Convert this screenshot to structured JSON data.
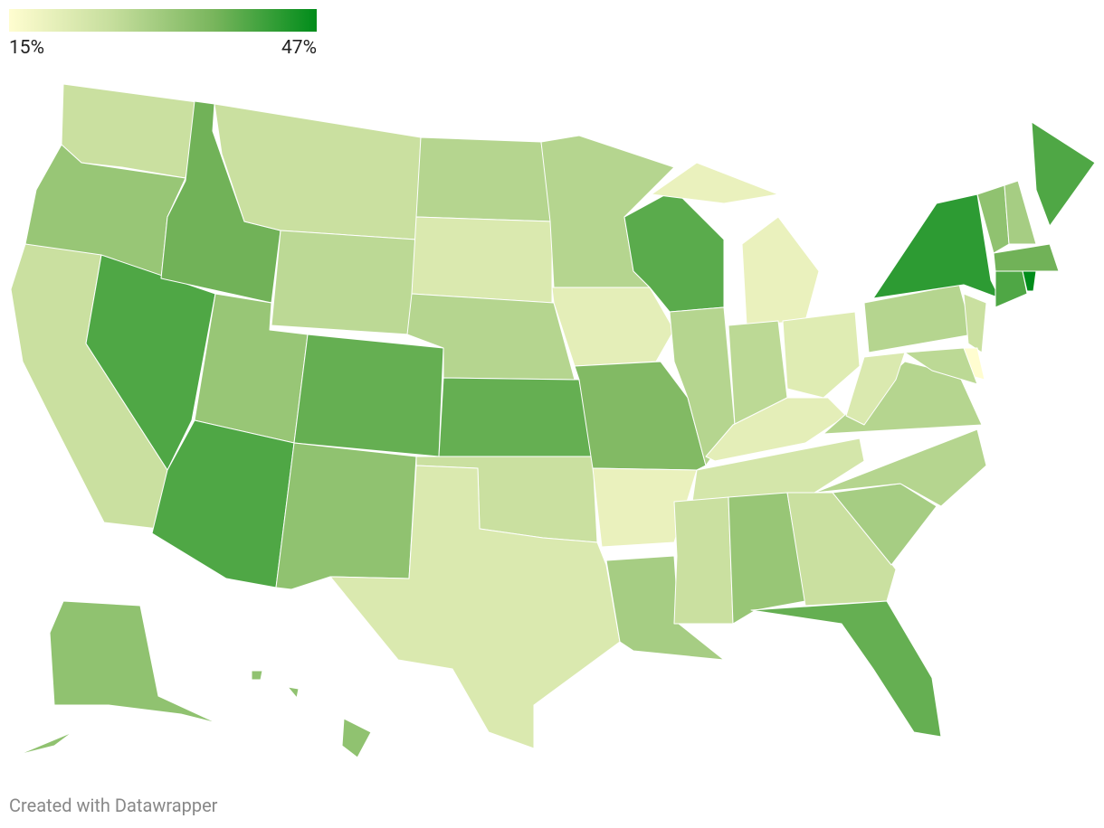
{
  "chart_data": {
    "type": "choropleth",
    "values": [
      25,
      32,
      25,
      40,
      37,
      25,
      27,
      32,
      40,
      38,
      33,
      28,
      22,
      28,
      38,
      25,
      22,
      28,
      20,
      35,
      19,
      30,
      39,
      28,
      19,
      27,
      21,
      20,
      23,
      25,
      32,
      25,
      38,
      30,
      28,
      28,
      22,
      28,
      43,
      40,
      33,
      30,
      37,
      40,
      47,
      25,
      15,
      27,
      33,
      33
    ],
    "colors": [
      "#fffdd0",
      "#c6de9d",
      "#78b55c",
      "#008c1a"
    ],
    "scale_ticks": [
      {
        "value": 15,
        "label": "15%"
      },
      {
        "value": 47,
        "label": "47%"
      }
    ]
  },
  "footer": "Created with Datawrapper"
}
